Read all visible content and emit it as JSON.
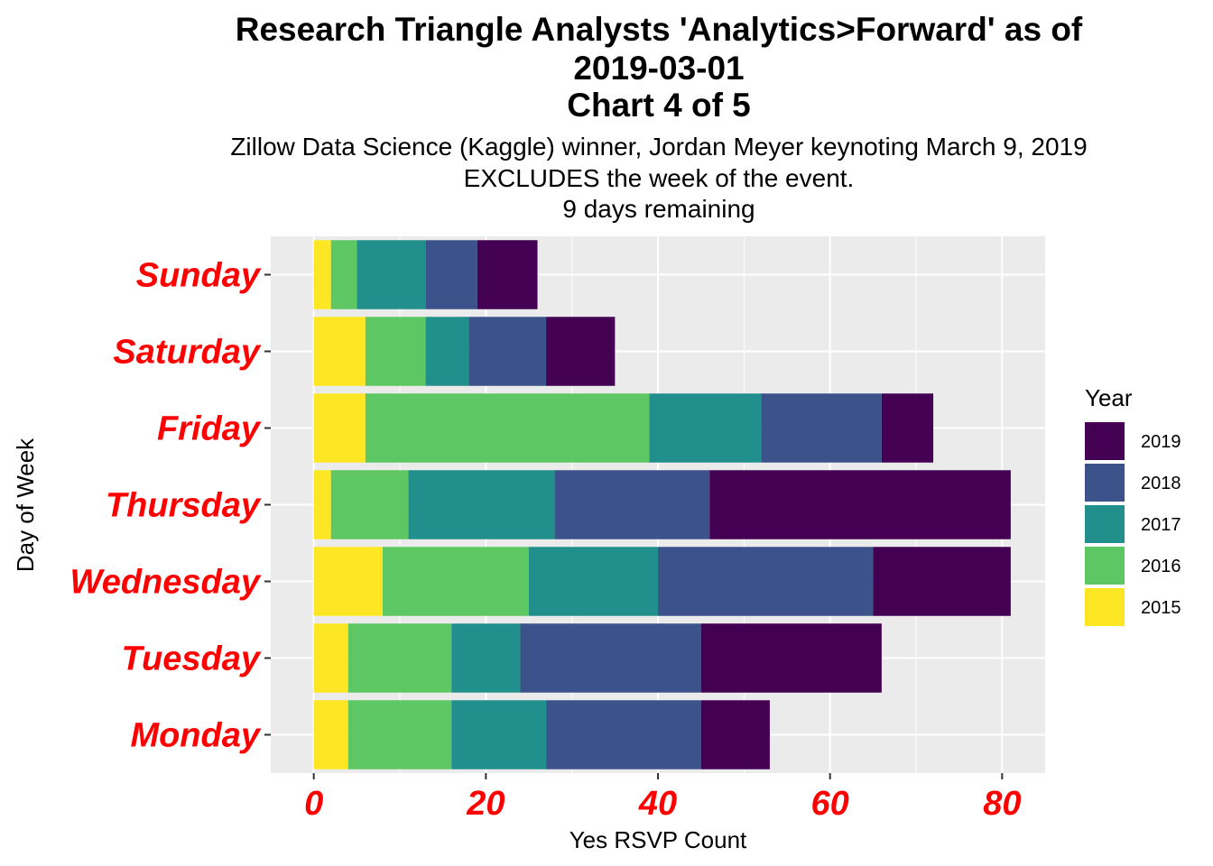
{
  "header": {
    "title_line1": "Research Triangle Analysts 'Analytics>Forward' as of",
    "title_line2": "2019-03-01",
    "title_line3": "Chart 4 of 5",
    "subtitle_line1": "Zillow Data Science (Kaggle) winner, Jordan Meyer keynoting March 9, 2019",
    "subtitle_line2": "EXCLUDES the week of the event.",
    "subtitle_line3": "9 days remaining"
  },
  "colors": {
    "panel_background": "#ebebeb",
    "gridline": "#ffffff",
    "axis_label_red": "#ff0000",
    "2019": "#440154",
    "2018": "#3b528b",
    "2017": "#21908c",
    "2016": "#5dc863",
    "2015": "#fde725"
  },
  "chart_data": {
    "type": "bar",
    "orientation": "horizontal",
    "stacked": true,
    "xlabel": "Yes RSVP Count",
    "ylabel": "Day of Week",
    "xlim": [
      -5,
      85
    ],
    "x_ticks": [
      0,
      20,
      40,
      60,
      80
    ],
    "grid": true,
    "legend_title": "Year",
    "legend_position": "right",
    "categories": [
      "Monday",
      "Tuesday",
      "Wednesday",
      "Thursday",
      "Friday",
      "Saturday",
      "Sunday"
    ],
    "series": [
      {
        "name": "2015",
        "color": "#fde725",
        "values": [
          4,
          4,
          8,
          2,
          6,
          6,
          2
        ]
      },
      {
        "name": "2016",
        "color": "#5dc863",
        "values": [
          12,
          12,
          17,
          9,
          33,
          7,
          3
        ]
      },
      {
        "name": "2017",
        "color": "#21908c",
        "values": [
          11,
          8,
          15,
          17,
          13,
          5,
          8
        ]
      },
      {
        "name": "2018",
        "color": "#3b528b",
        "values": [
          18,
          21,
          25,
          18,
          14,
          9,
          6
        ]
      },
      {
        "name": "2019",
        "color": "#440154",
        "values": [
          8,
          21,
          16,
          35,
          6,
          8,
          7
        ]
      }
    ],
    "legend_order": [
      "2019",
      "2018",
      "2017",
      "2016",
      "2015"
    ]
  }
}
